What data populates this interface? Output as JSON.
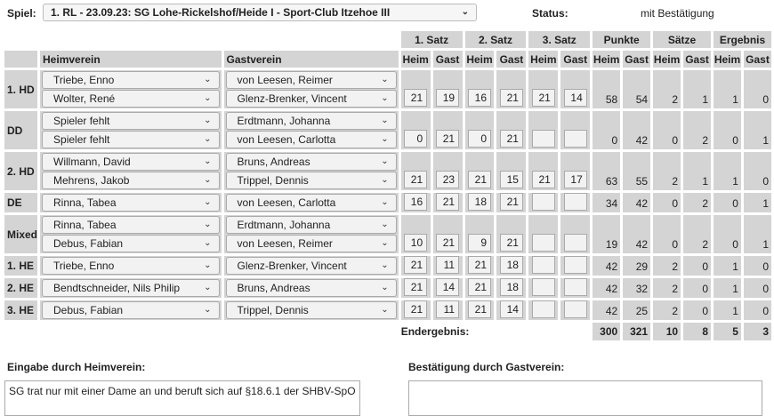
{
  "header": {
    "spiel_label": "Spiel:",
    "game": "1. RL - 23.09.23:  SG Lohe-Rickelshof/Heide I - Sport-Club Itzehoe III",
    "status_label": "Status:",
    "status_value": "mit Bestätigung"
  },
  "columns": {
    "home": "Heimverein",
    "guest": "Gastverein",
    "groups": [
      "1. Satz",
      "2. Satz",
      "3. Satz",
      "Punkte",
      "Sätze",
      "Ergebnis"
    ],
    "heim": "Heim",
    "gast": "Gast"
  },
  "matches": [
    {
      "label": "1. HD",
      "home": [
        "Triebe, Enno",
        "Wolter, René"
      ],
      "guest": [
        "von Leesen, Reimer",
        "Glenz-Brenker, Vincent"
      ],
      "sets": [
        [
          "21",
          "19"
        ],
        [
          "16",
          "21"
        ],
        [
          "21",
          "14"
        ]
      ],
      "points": [
        "58",
        "54"
      ],
      "saetze": [
        "2",
        "1"
      ],
      "ergebnis": [
        "1",
        "0"
      ]
    },
    {
      "label": "DD",
      "home": [
        "Spieler fehlt",
        "Spieler fehlt"
      ],
      "guest": [
        "Erdtmann, Johanna",
        "von Leesen, Carlotta"
      ],
      "sets": [
        [
          "0",
          "21"
        ],
        [
          "0",
          "21"
        ],
        [
          "",
          ""
        ]
      ],
      "points": [
        "0",
        "42"
      ],
      "saetze": [
        "0",
        "2"
      ],
      "ergebnis": [
        "0",
        "1"
      ]
    },
    {
      "label": "2. HD",
      "home": [
        "Willmann, David",
        "Mehrens, Jakob"
      ],
      "guest": [
        "Bruns, Andreas",
        "Trippel, Dennis"
      ],
      "sets": [
        [
          "21",
          "23"
        ],
        [
          "21",
          "15"
        ],
        [
          "21",
          "17"
        ]
      ],
      "points": [
        "63",
        "55"
      ],
      "saetze": [
        "2",
        "1"
      ],
      "ergebnis": [
        "1",
        "0"
      ]
    },
    {
      "label": "DE",
      "home": [
        "Rinna, Tabea"
      ],
      "guest": [
        "von Leesen, Carlotta"
      ],
      "sets": [
        [
          "16",
          "21"
        ],
        [
          "18",
          "21"
        ],
        [
          "",
          ""
        ]
      ],
      "points": [
        "34",
        "42"
      ],
      "saetze": [
        "0",
        "2"
      ],
      "ergebnis": [
        "0",
        "1"
      ]
    },
    {
      "label": "Mixed",
      "home": [
        "Rinna, Tabea",
        "Debus, Fabian"
      ],
      "guest": [
        "Erdtmann, Johanna",
        "von Leesen, Reimer"
      ],
      "sets": [
        [
          "10",
          "21"
        ],
        [
          "9",
          "21"
        ],
        [
          "",
          ""
        ]
      ],
      "points": [
        "19",
        "42"
      ],
      "saetze": [
        "0",
        "2"
      ],
      "ergebnis": [
        "0",
        "1"
      ]
    },
    {
      "label": "1. HE",
      "home": [
        "Triebe, Enno"
      ],
      "guest": [
        "Glenz-Brenker, Vincent"
      ],
      "sets": [
        [
          "21",
          "11"
        ],
        [
          "21",
          "18"
        ],
        [
          "",
          ""
        ]
      ],
      "points": [
        "42",
        "29"
      ],
      "saetze": [
        "2",
        "0"
      ],
      "ergebnis": [
        "1",
        "0"
      ]
    },
    {
      "label": "2. HE",
      "home": [
        "Bendtschneider, Nils Philip"
      ],
      "guest": [
        "Bruns, Andreas"
      ],
      "sets": [
        [
          "21",
          "14"
        ],
        [
          "21",
          "18"
        ],
        [
          "",
          ""
        ]
      ],
      "points": [
        "42",
        "32"
      ],
      "saetze": [
        "2",
        "0"
      ],
      "ergebnis": [
        "1",
        "0"
      ]
    },
    {
      "label": "3. HE",
      "home": [
        "Debus, Fabian"
      ],
      "guest": [
        "Trippel, Dennis"
      ],
      "sets": [
        [
          "21",
          "11"
        ],
        [
          "21",
          "14"
        ],
        [
          "",
          ""
        ]
      ],
      "points": [
        "42",
        "25"
      ],
      "saetze": [
        "2",
        "0"
      ],
      "ergebnis": [
        "1",
        "0"
      ]
    }
  ],
  "total": {
    "label": "Endergebnis:",
    "points": [
      "300",
      "321"
    ],
    "saetze": [
      "10",
      "8"
    ],
    "ergebnis": [
      "5",
      "3"
    ]
  },
  "comments": {
    "home_label": "Eingabe durch Heimverein:",
    "home_text": "SG trat nur mit einer Dame an und beruft sich auf §18.6.1 der SHBV-SpO",
    "guest_label": "Bestätigung durch Gastverein:",
    "guest_text": ""
  }
}
